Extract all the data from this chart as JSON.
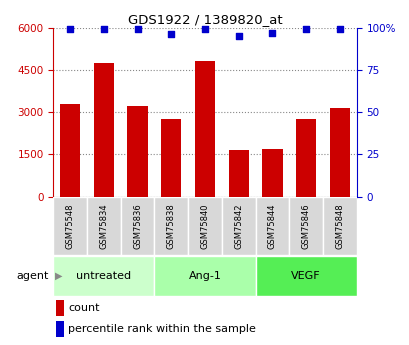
{
  "title": "GDS1922 / 1389820_at",
  "samples": [
    "GSM75548",
    "GSM75834",
    "GSM75836",
    "GSM75838",
    "GSM75840",
    "GSM75842",
    "GSM75844",
    "GSM75846",
    "GSM75848"
  ],
  "counts": [
    3300,
    4750,
    3200,
    2750,
    4800,
    1650,
    1700,
    2750,
    3150
  ],
  "percentile": [
    99,
    99,
    99,
    96,
    99,
    95,
    97,
    99,
    99
  ],
  "groups": [
    {
      "label": "untreated",
      "indices": [
        0,
        1,
        2
      ],
      "color": "#ccffcc"
    },
    {
      "label": "Ang-1",
      "indices": [
        3,
        4,
        5
      ],
      "color": "#aaffaa"
    },
    {
      "label": "VEGF",
      "indices": [
        6,
        7,
        8
      ],
      "color": "#55ee55"
    }
  ],
  "bar_color": "#cc0000",
  "dot_color": "#0000cc",
  "ylim_left": [
    0,
    6000
  ],
  "ylim_right": [
    0,
    100
  ],
  "yticks_left": [
    0,
    1500,
    3000,
    4500,
    6000
  ],
  "yticks_right": [
    0,
    25,
    50,
    75,
    100
  ],
  "left_axis_color": "#cc0000",
  "right_axis_color": "#0000cc",
  "grid_color": "#888888",
  "sample_cell_color": "#d8d8d8",
  "agent_label": "agent",
  "legend_count_label": "count",
  "legend_pct_label": "percentile rank within the sample"
}
